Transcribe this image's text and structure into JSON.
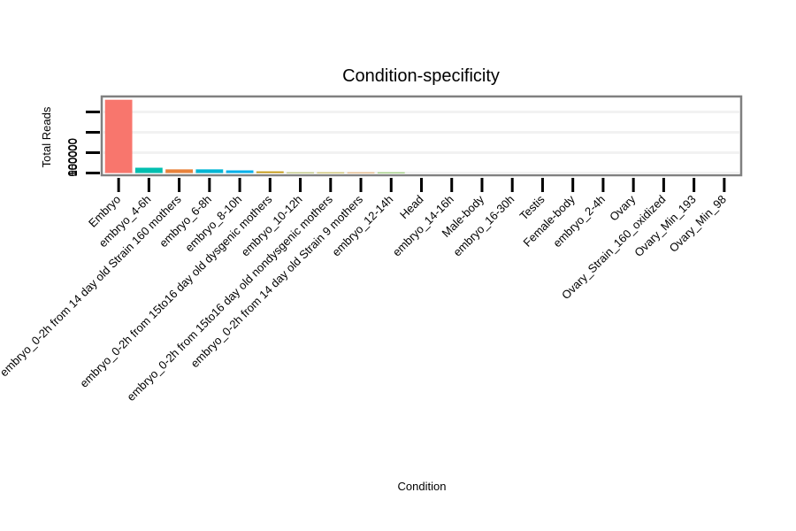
{
  "chart_data": {
    "type": "bar",
    "title": "Condition-specificity",
    "xlabel": "Condition",
    "ylabel": "Total Reads",
    "ylim": [
      0,
      180000
    ],
    "yticks": [
      "0",
      "50000",
      "100000",
      "150000"
    ],
    "ytick_values": [
      0,
      50000,
      100000,
      150000
    ],
    "grid": true,
    "legend": "none",
    "categories": [
      "Embryo",
      "embryo_4-6h",
      "embryo_0-2h from 14 day old Strain 160 mothers",
      "embryo_6-8h",
      "embryo_8-10h",
      "embryo_0-2h from 15to16 day old dysgenic mothers",
      "embryo_10-12h",
      "embryo_0-2h from 15to16 day old nondysgenic mothers",
      "embryo_0-2h from 14 day old Strain 9 mothers",
      "embryo_12-14h",
      "Head",
      "embryo_14-16h",
      "Male-body",
      "embryo_16-30h",
      "Testis",
      "Female-body",
      "embryo_2-4h",
      "Ovary",
      "Ovary_Strain_160_oxidized",
      "Ovary_Min_193",
      "Ovary_Min_98"
    ],
    "values": [
      180000,
      13000,
      9000,
      9000,
      6500,
      4000,
      1500,
      1500,
      1500,
      1500,
      0,
      0,
      0,
      0,
      0,
      0,
      0,
      0,
      0,
      0,
      0
    ],
    "colors": [
      "#F8766D",
      "#00BFB0",
      "#E8823B",
      "#00B6D4",
      "#00B0EA",
      "#C59A12",
      "#9AA61C",
      "#B6A200",
      "#DE8C2A",
      "#5BB31A",
      "#F8766D",
      "#F8766D",
      "#F8766D",
      "#F8766D",
      "#F8766D",
      "#F8766D",
      "#F8766D",
      "#F8766D",
      "#F8766D",
      "#F8766D",
      "#F8766D"
    ]
  }
}
